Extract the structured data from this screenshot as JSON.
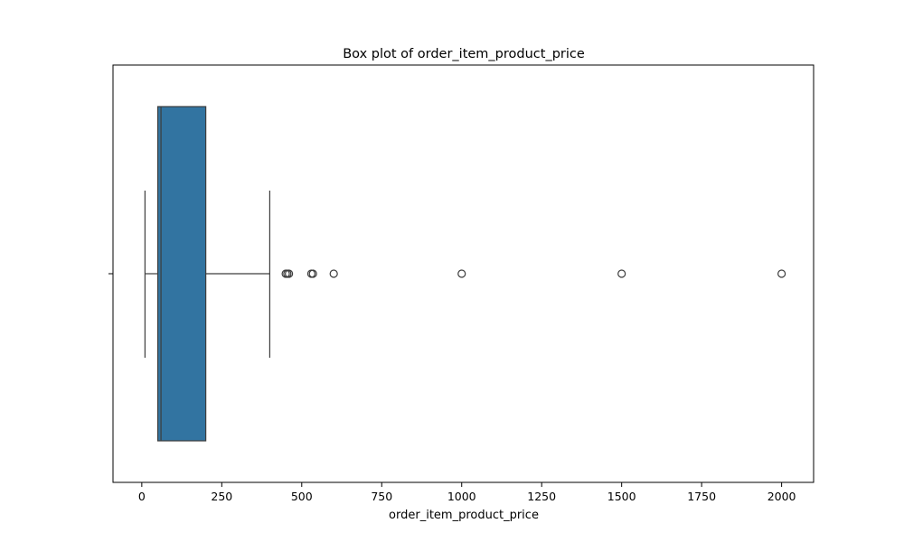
{
  "chart_data": {
    "type": "box",
    "title": "Box plot of order_item_product_price",
    "xlabel": "order_item_product_price",
    "ylabel": "",
    "orientation": "horizontal",
    "xlim": [
      -90,
      2100
    ],
    "xticks": [
      0,
      250,
      500,
      750,
      1000,
      1250,
      1500,
      1750,
      2000
    ],
    "grid": false,
    "box": {
      "whisker_low": 10,
      "q1": 50,
      "median": 60,
      "q3": 200,
      "whisker_high": 400,
      "color": "#3274a1"
    },
    "outliers": [
      450,
      455,
      460,
      530,
      535,
      600,
      1000,
      1500,
      2000
    ]
  }
}
